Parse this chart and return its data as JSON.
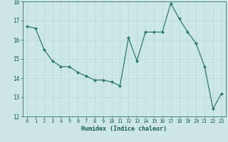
{
  "x": [
    0,
    1,
    2,
    3,
    4,
    5,
    6,
    7,
    8,
    9,
    10,
    11,
    12,
    13,
    14,
    15,
    16,
    17,
    18,
    19,
    20,
    21,
    22,
    23
  ],
  "y": [
    16.7,
    16.6,
    15.5,
    14.9,
    14.6,
    14.6,
    14.3,
    14.1,
    13.9,
    13.9,
    13.8,
    13.6,
    16.1,
    14.9,
    16.4,
    16.4,
    16.4,
    17.9,
    17.1,
    16.4,
    15.8,
    14.6,
    12.4,
    13.2
  ],
  "xlabel": "Humidex (Indice chaleur)",
  "ylim": [
    12,
    18
  ],
  "xlim": [
    -0.5,
    23.5
  ],
  "yticks": [
    12,
    13,
    14,
    15,
    16,
    17,
    18
  ],
  "xticks": [
    0,
    1,
    2,
    3,
    4,
    5,
    6,
    7,
    8,
    9,
    10,
    11,
    12,
    13,
    14,
    15,
    16,
    17,
    18,
    19,
    20,
    21,
    22,
    23
  ],
  "line_color": "#2d7a6e",
  "marker_color": "#2d7a6e",
  "bg_color": "#cde8e4",
  "grid_color": "#b8d8d4",
  "label_color": "#1a5c52",
  "tick_color": "#1a5c52"
}
